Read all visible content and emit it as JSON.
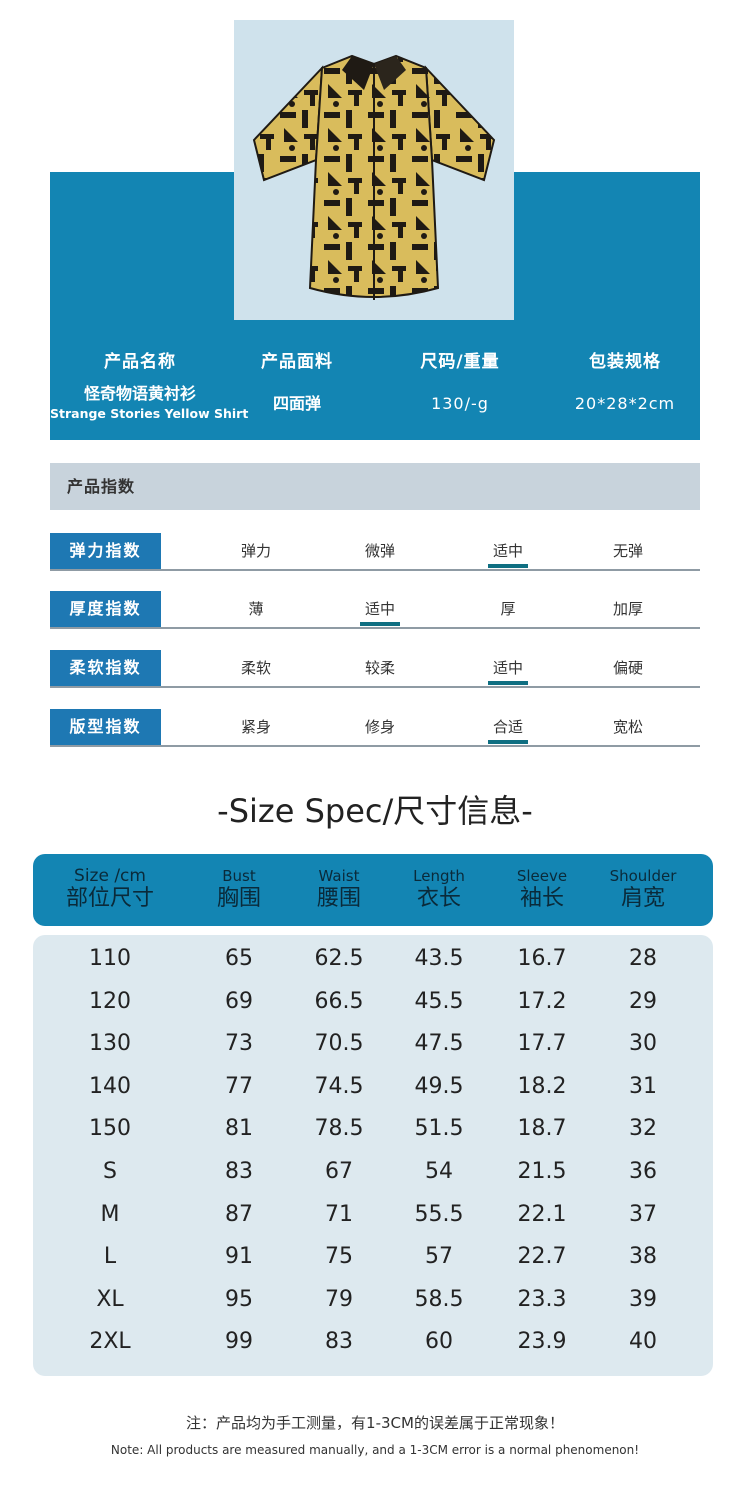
{
  "product": {
    "headers": [
      "产品名称",
      "产品面料",
      "尺码/重量",
      "包装规格"
    ],
    "name_zh": "怪奇物语黄衬衫",
    "name_en": "Strange Stories Yellow Shirt",
    "fabric": "四面弹",
    "size_weight": "130/-g",
    "package": "20*28*2cm"
  },
  "colors": {
    "banner": "#1385b3",
    "label": "#1e78b3",
    "selected_bar": "#0f6f82",
    "table_body": "#dde9ef"
  },
  "index": {
    "title": "产品指数",
    "rows": [
      {
        "label": "弹力指数",
        "options": [
          "弹力",
          "微弹",
          "适中",
          "无弹"
        ],
        "selected": 2
      },
      {
        "label": "厚度指数",
        "options": [
          "薄",
          "适中",
          "厚",
          "加厚"
        ],
        "selected": 1
      },
      {
        "label": "柔软指数",
        "options": [
          "柔软",
          "较柔",
          "适中",
          "偏硬"
        ],
        "selected": 2
      },
      {
        "label": "版型指数",
        "options": [
          "紧身",
          "修身",
          "合适",
          "宽松"
        ],
        "selected": 2
      }
    ]
  },
  "size_spec": {
    "title": "-Size Spec/尺寸信息-",
    "columns": [
      {
        "en": "Size /cm",
        "zh": "部位尺寸"
      },
      {
        "en": "Bust",
        "zh": "胸围"
      },
      {
        "en": "Waist",
        "zh": "腰围"
      },
      {
        "en": "Length",
        "zh": "衣长"
      },
      {
        "en": "Sleeve",
        "zh": "袖长"
      },
      {
        "en": "Shoulder",
        "zh": "肩宽"
      }
    ],
    "rows": [
      [
        "110",
        "65",
        "62.5",
        "43.5",
        "16.7",
        "28"
      ],
      [
        "120",
        "69",
        "66.5",
        "45.5",
        "17.2",
        "29"
      ],
      [
        "130",
        "73",
        "70.5",
        "47.5",
        "17.7",
        "30"
      ],
      [
        "140",
        "77",
        "74.5",
        "49.5",
        "18.2",
        "31"
      ],
      [
        "150",
        "81",
        "78.5",
        "51.5",
        "18.7",
        "32"
      ],
      [
        "S",
        "83",
        "67",
        "54",
        "21.5",
        "36"
      ],
      [
        "M",
        "87",
        "71",
        "55.5",
        "22.1",
        "37"
      ],
      [
        "L",
        "91",
        "75",
        "57",
        "22.7",
        "38"
      ],
      [
        "XL",
        "95",
        "79",
        "58.5",
        "23.3",
        "39"
      ],
      [
        "2XL",
        "99",
        "83",
        "60",
        "23.9",
        "40"
      ]
    ]
  },
  "notes": {
    "zh": "注：产品均为手工测量，有1-3CM的误差属于正常现象！",
    "en": "Note: All products are measured manually, and a 1-3CM error is a normal phenomenon!"
  }
}
